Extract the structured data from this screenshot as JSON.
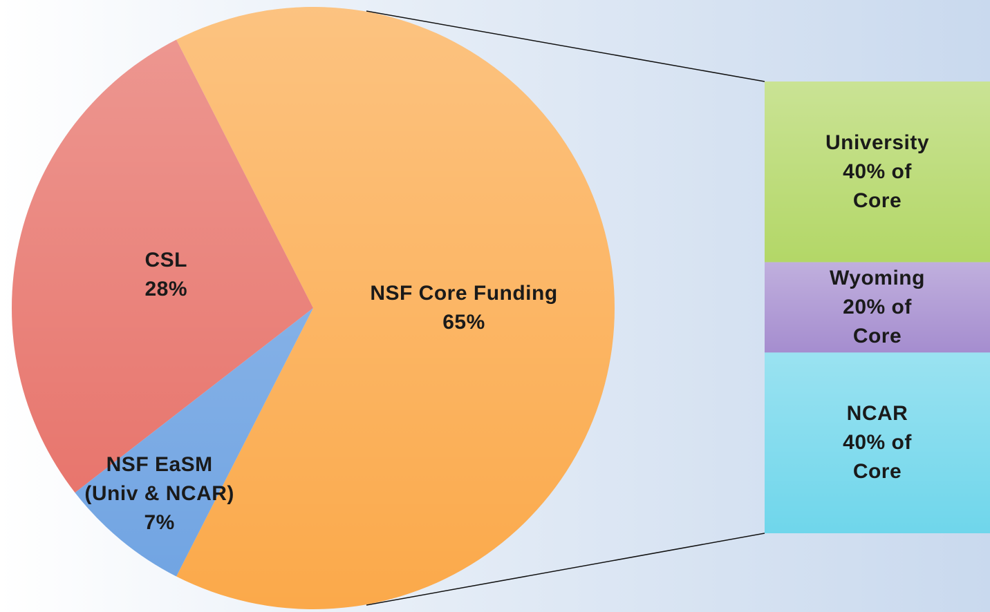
{
  "chart_data": {
    "type": "pie",
    "categories": [
      "NSF Core Funding",
      "CSL",
      "NSF EaSM\n(Univ & NCAR)"
    ],
    "values": [
      65,
      28,
      7
    ],
    "value_labels": [
      "65%",
      "28%",
      "7%"
    ],
    "colors": [
      "#fba94a",
      "#e66d64",
      "#6fa3e2"
    ],
    "breakdown": {
      "type": "bar",
      "categories": [
        "University",
        "Wyoming",
        "NCAR"
      ],
      "values": [
        40,
        20,
        40
      ],
      "value_labels": [
        "40% of Core",
        "20% of Core",
        "40% of Core"
      ],
      "colors": [
        "#b3d767",
        "#a58dcf",
        "#6fd6eb"
      ]
    }
  }
}
